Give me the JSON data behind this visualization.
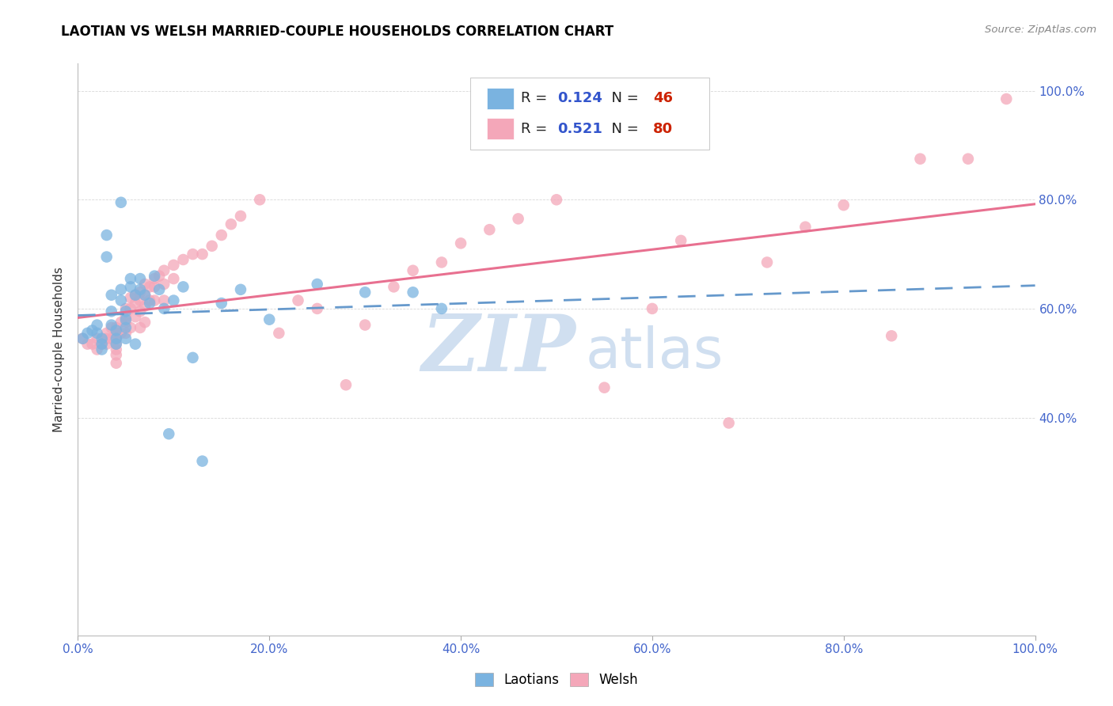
{
  "title": "LAOTIAN VS WELSH MARRIED-COUPLE HOUSEHOLDS CORRELATION CHART",
  "source": "Source: ZipAtlas.com",
  "ylabel": "Married-couple Households",
  "xlim": [
    0.0,
    1.0
  ],
  "ylim": [
    0.0,
    1.05
  ],
  "xticks": [
    0.0,
    0.2,
    0.4,
    0.6,
    0.8,
    1.0
  ],
  "xtick_labels": [
    "0.0%",
    "20.0%",
    "40.0%",
    "60.0%",
    "80.0%",
    "100.0%"
  ],
  "ytick_positions": [
    0.4,
    0.6,
    0.8,
    1.0
  ],
  "ytick_labels": [
    "40.0%",
    "60.0%",
    "80.0%",
    "100.0%"
  ],
  "laotian_color": "#7ab3e0",
  "welsh_color": "#f4a7b9",
  "laotian_line_color": "#6699cc",
  "welsh_line_color": "#e87090",
  "laotian_R": 0.124,
  "laotian_N": 46,
  "welsh_R": 0.521,
  "welsh_N": 80,
  "legend_R_color": "#3355cc",
  "legend_N_color": "#cc2200",
  "watermark_zip": "ZIP",
  "watermark_atlas": "atlas",
  "watermark_color": "#d0dff0",
  "tick_color": "#4466cc",
  "laotian_x": [
    0.005,
    0.01,
    0.015,
    0.02,
    0.02,
    0.025,
    0.025,
    0.025,
    0.03,
    0.03,
    0.035,
    0.035,
    0.035,
    0.04,
    0.04,
    0.04,
    0.045,
    0.045,
    0.045,
    0.05,
    0.05,
    0.05,
    0.05,
    0.055,
    0.055,
    0.06,
    0.06,
    0.065,
    0.065,
    0.07,
    0.075,
    0.08,
    0.085,
    0.09,
    0.095,
    0.1,
    0.11,
    0.12,
    0.13,
    0.15,
    0.17,
    0.2,
    0.25,
    0.3,
    0.35,
    0.38
  ],
  "laotian_y": [
    0.545,
    0.555,
    0.56,
    0.57,
    0.555,
    0.545,
    0.535,
    0.525,
    0.735,
    0.695,
    0.625,
    0.595,
    0.57,
    0.56,
    0.545,
    0.535,
    0.795,
    0.635,
    0.615,
    0.595,
    0.58,
    0.565,
    0.545,
    0.655,
    0.64,
    0.625,
    0.535,
    0.655,
    0.635,
    0.625,
    0.61,
    0.66,
    0.635,
    0.6,
    0.37,
    0.615,
    0.64,
    0.51,
    0.32,
    0.61,
    0.635,
    0.58,
    0.645,
    0.63,
    0.63,
    0.6
  ],
  "welsh_x": [
    0.005,
    0.01,
    0.015,
    0.02,
    0.02,
    0.025,
    0.03,
    0.03,
    0.03,
    0.035,
    0.035,
    0.04,
    0.04,
    0.04,
    0.04,
    0.04,
    0.04,
    0.04,
    0.045,
    0.045,
    0.05,
    0.05,
    0.05,
    0.05,
    0.055,
    0.055,
    0.055,
    0.06,
    0.06,
    0.06,
    0.065,
    0.065,
    0.065,
    0.065,
    0.07,
    0.07,
    0.07,
    0.07,
    0.075,
    0.075,
    0.08,
    0.08,
    0.08,
    0.085,
    0.09,
    0.09,
    0.09,
    0.1,
    0.1,
    0.11,
    0.12,
    0.13,
    0.14,
    0.15,
    0.16,
    0.17,
    0.19,
    0.21,
    0.23,
    0.25,
    0.28,
    0.3,
    0.33,
    0.35,
    0.38,
    0.4,
    0.43,
    0.46,
    0.5,
    0.55,
    0.6,
    0.63,
    0.68,
    0.72,
    0.76,
    0.8,
    0.85,
    0.88,
    0.93,
    0.97
  ],
  "welsh_y": [
    0.545,
    0.535,
    0.535,
    0.545,
    0.525,
    0.535,
    0.555,
    0.545,
    0.535,
    0.565,
    0.545,
    0.565,
    0.555,
    0.545,
    0.535,
    0.525,
    0.515,
    0.5,
    0.575,
    0.555,
    0.6,
    0.585,
    0.575,
    0.555,
    0.62,
    0.6,
    0.565,
    0.625,
    0.61,
    0.585,
    0.63,
    0.615,
    0.595,
    0.565,
    0.645,
    0.625,
    0.605,
    0.575,
    0.64,
    0.615,
    0.655,
    0.64,
    0.615,
    0.66,
    0.67,
    0.645,
    0.615,
    0.68,
    0.655,
    0.69,
    0.7,
    0.7,
    0.715,
    0.735,
    0.755,
    0.77,
    0.8,
    0.555,
    0.615,
    0.6,
    0.46,
    0.57,
    0.64,
    0.67,
    0.685,
    0.72,
    0.745,
    0.765,
    0.8,
    0.455,
    0.6,
    0.725,
    0.39,
    0.685,
    0.75,
    0.79,
    0.55,
    0.875,
    0.875,
    0.985
  ]
}
